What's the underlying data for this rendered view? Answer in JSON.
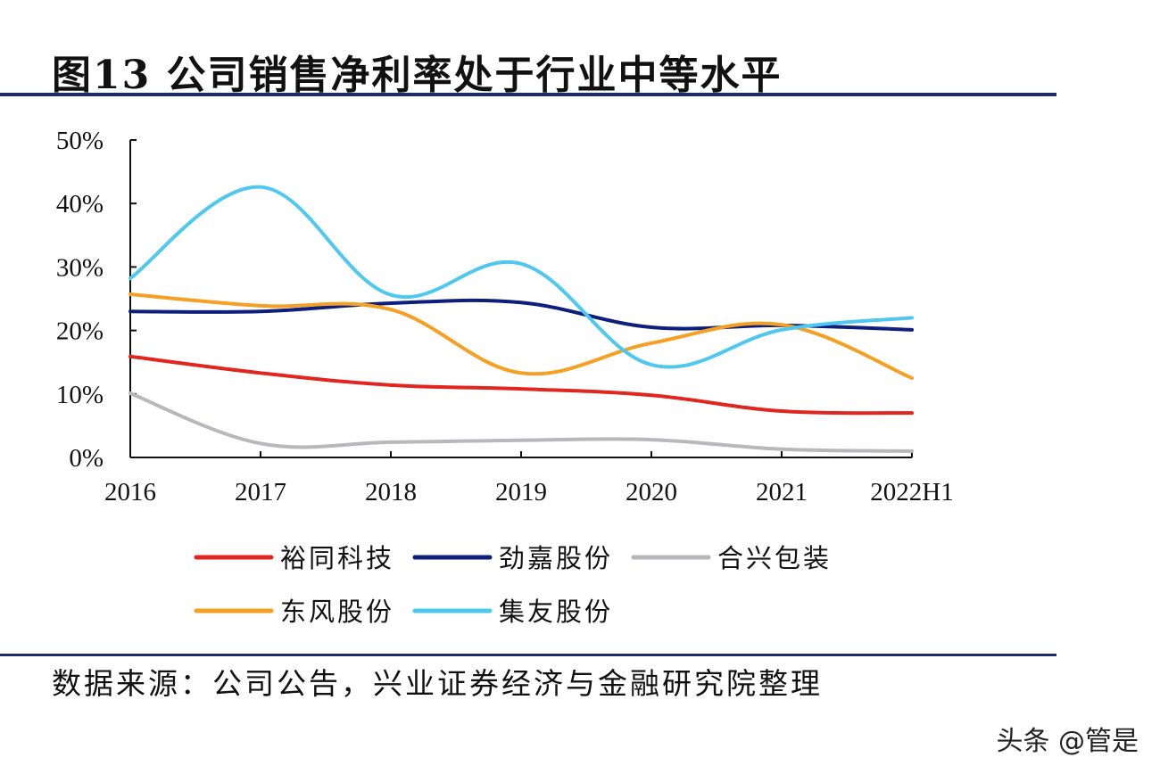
{
  "title": "图13 公司销售净利率处于行业中等水平",
  "source": "数据来源：公司公告，兴业证券经济与金融研究院整理",
  "watermark": "头条 @管是",
  "chart_data": {
    "type": "line",
    "title": "",
    "xlabel": "",
    "ylabel": "",
    "categories": [
      "2016",
      "2017",
      "2018",
      "2019",
      "2020",
      "2021",
      "2022H1"
    ],
    "ylim": [
      0,
      50
    ],
    "yticks": [
      "0%",
      "10%",
      "20%",
      "30%",
      "40%",
      "50%"
    ],
    "grid": false,
    "smooth": true,
    "legend_position": "bottom",
    "series": [
      {
        "name": "裕同科技",
        "color": "#e0261e",
        "values": [
          15.9,
          13.3,
          11.4,
          10.8,
          9.8,
          7.3,
          7.0
        ]
      },
      {
        "name": "劲嘉股份",
        "color": "#0d1f7a",
        "values": [
          23.0,
          23.0,
          24.3,
          24.4,
          20.5,
          20.8,
          20.1
        ]
      },
      {
        "name": "合兴包装",
        "color": "#b8b8bc",
        "values": [
          10.1,
          2.2,
          2.4,
          2.7,
          2.8,
          1.3,
          1.0
        ]
      },
      {
        "name": "东风股份",
        "color": "#f5a023",
        "values": [
          25.7,
          23.9,
          23.3,
          13.3,
          18.0,
          20.9,
          12.5
        ]
      },
      {
        "name": "集友股份",
        "color": "#4fc8f0",
        "values": [
          28.2,
          42.6,
          25.6,
          30.5,
          14.6,
          20.1,
          22.0
        ]
      }
    ]
  }
}
